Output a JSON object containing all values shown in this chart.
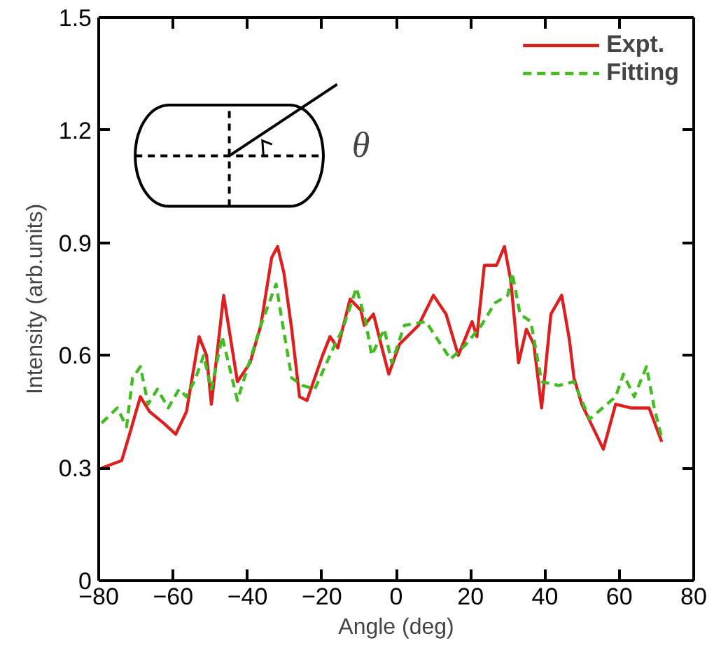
{
  "chart_data": {
    "type": "line",
    "xlabel": "Angle (deg)",
    "ylabel": "Intensity (arb.units)",
    "xlim": [
      -80,
      80
    ],
    "ylim": [
      0,
      1.5
    ],
    "xticks": [
      -80,
      -60,
      -40,
      -20,
      0,
      20,
      40,
      60,
      80
    ],
    "yticks": [
      0,
      {
        "value": 0.3,
        "label": "0.3"
      },
      {
        "value": 0.6,
        "label": "0.6"
      },
      {
        "value": 0.9,
        "label": "0.9"
      },
      {
        "value": 1.2,
        "label": "1.2"
      },
      {
        "value": 1.5,
        "label": "1.5"
      }
    ],
    "grid": false,
    "legend": "top right",
    "annotations": [
      "θ"
    ],
    "series": [
      {
        "name": "Expt.",
        "color": "#dd1f1f",
        "line_style": "solid",
        "x": [
          -79.2,
          -73.8,
          -71.7,
          -68.8,
          -66.3,
          -62.6,
          -59.3,
          -56.4,
          -53,
          -51,
          -49.7,
          -46.4,
          -42.7,
          -39.3,
          -36.4,
          -33.5,
          -31.9,
          -30.2,
          -28.1,
          -26,
          -24,
          -19.8,
          -17.8,
          -15.7,
          -12.4,
          -9.5,
          -8.6,
          -6.1,
          -4.1,
          -2,
          0.9,
          6,
          10,
          13.4,
          16.7,
          20.4,
          21.7,
          23.7,
          27,
          29.1,
          30.8,
          32.9,
          35,
          37,
          39.1,
          41.6,
          44.5,
          46.6,
          47.8,
          49.9,
          55.7,
          59,
          63.1,
          68,
          71.4
        ],
        "values": [
          0.3,
          0.32,
          0.39,
          0.49,
          0.45,
          0.42,
          0.39,
          0.45,
          0.65,
          0.6,
          0.47,
          0.76,
          0.53,
          0.58,
          0.68,
          0.86,
          0.89,
          0.82,
          0.67,
          0.49,
          0.48,
          0.6,
          0.65,
          0.62,
          0.75,
          0.72,
          0.68,
          0.71,
          0.63,
          0.55,
          0.63,
          0.68,
          0.76,
          0.71,
          0.6,
          0.69,
          0.65,
          0.84,
          0.84,
          0.89,
          0.8,
          0.58,
          0.67,
          0.63,
          0.46,
          0.71,
          0.76,
          0.64,
          0.54,
          0.47,
          0.35,
          0.47,
          0.46,
          0.46,
          0.37
        ]
      },
      {
        "name": "Fitting",
        "color": "#44bb22",
        "line_style": "dashed",
        "x": [
          -79.2,
          -75,
          -72.5,
          -70.9,
          -68.8,
          -66.7,
          -64.2,
          -61.3,
          -58.4,
          -56.4,
          -53.9,
          -51.8,
          -49.7,
          -46.8,
          -42.7,
          -36.4,
          -32.3,
          -31,
          -28.1,
          -25.2,
          -21.9,
          -16.9,
          -14.4,
          -10.7,
          -8.2,
          -6.6,
          -3.2,
          -1.2,
          2.2,
          8,
          11.3,
          14.6,
          18.8,
          22.9,
          26.6,
          30,
          31.2,
          33.3,
          36.2,
          39.1,
          43.7,
          47.8,
          52,
          59,
          61.1,
          64,
          67.3,
          69.4,
          71.4
        ],
        "values": [
          0.42,
          0.46,
          0.41,
          0.54,
          0.57,
          0.47,
          0.51,
          0.46,
          0.51,
          0.49,
          0.54,
          0.6,
          0.51,
          0.65,
          0.48,
          0.68,
          0.79,
          0.71,
          0.54,
          0.52,
          0.51,
          0.62,
          0.67,
          0.78,
          0.69,
          0.6,
          0.67,
          0.58,
          0.68,
          0.69,
          0.64,
          0.59,
          0.63,
          0.68,
          0.74,
          0.76,
          0.82,
          0.71,
          0.69,
          0.53,
          0.52,
          0.53,
          0.43,
          0.49,
          0.55,
          0.49,
          0.57,
          0.46,
          0.38
        ]
      }
    ]
  }
}
